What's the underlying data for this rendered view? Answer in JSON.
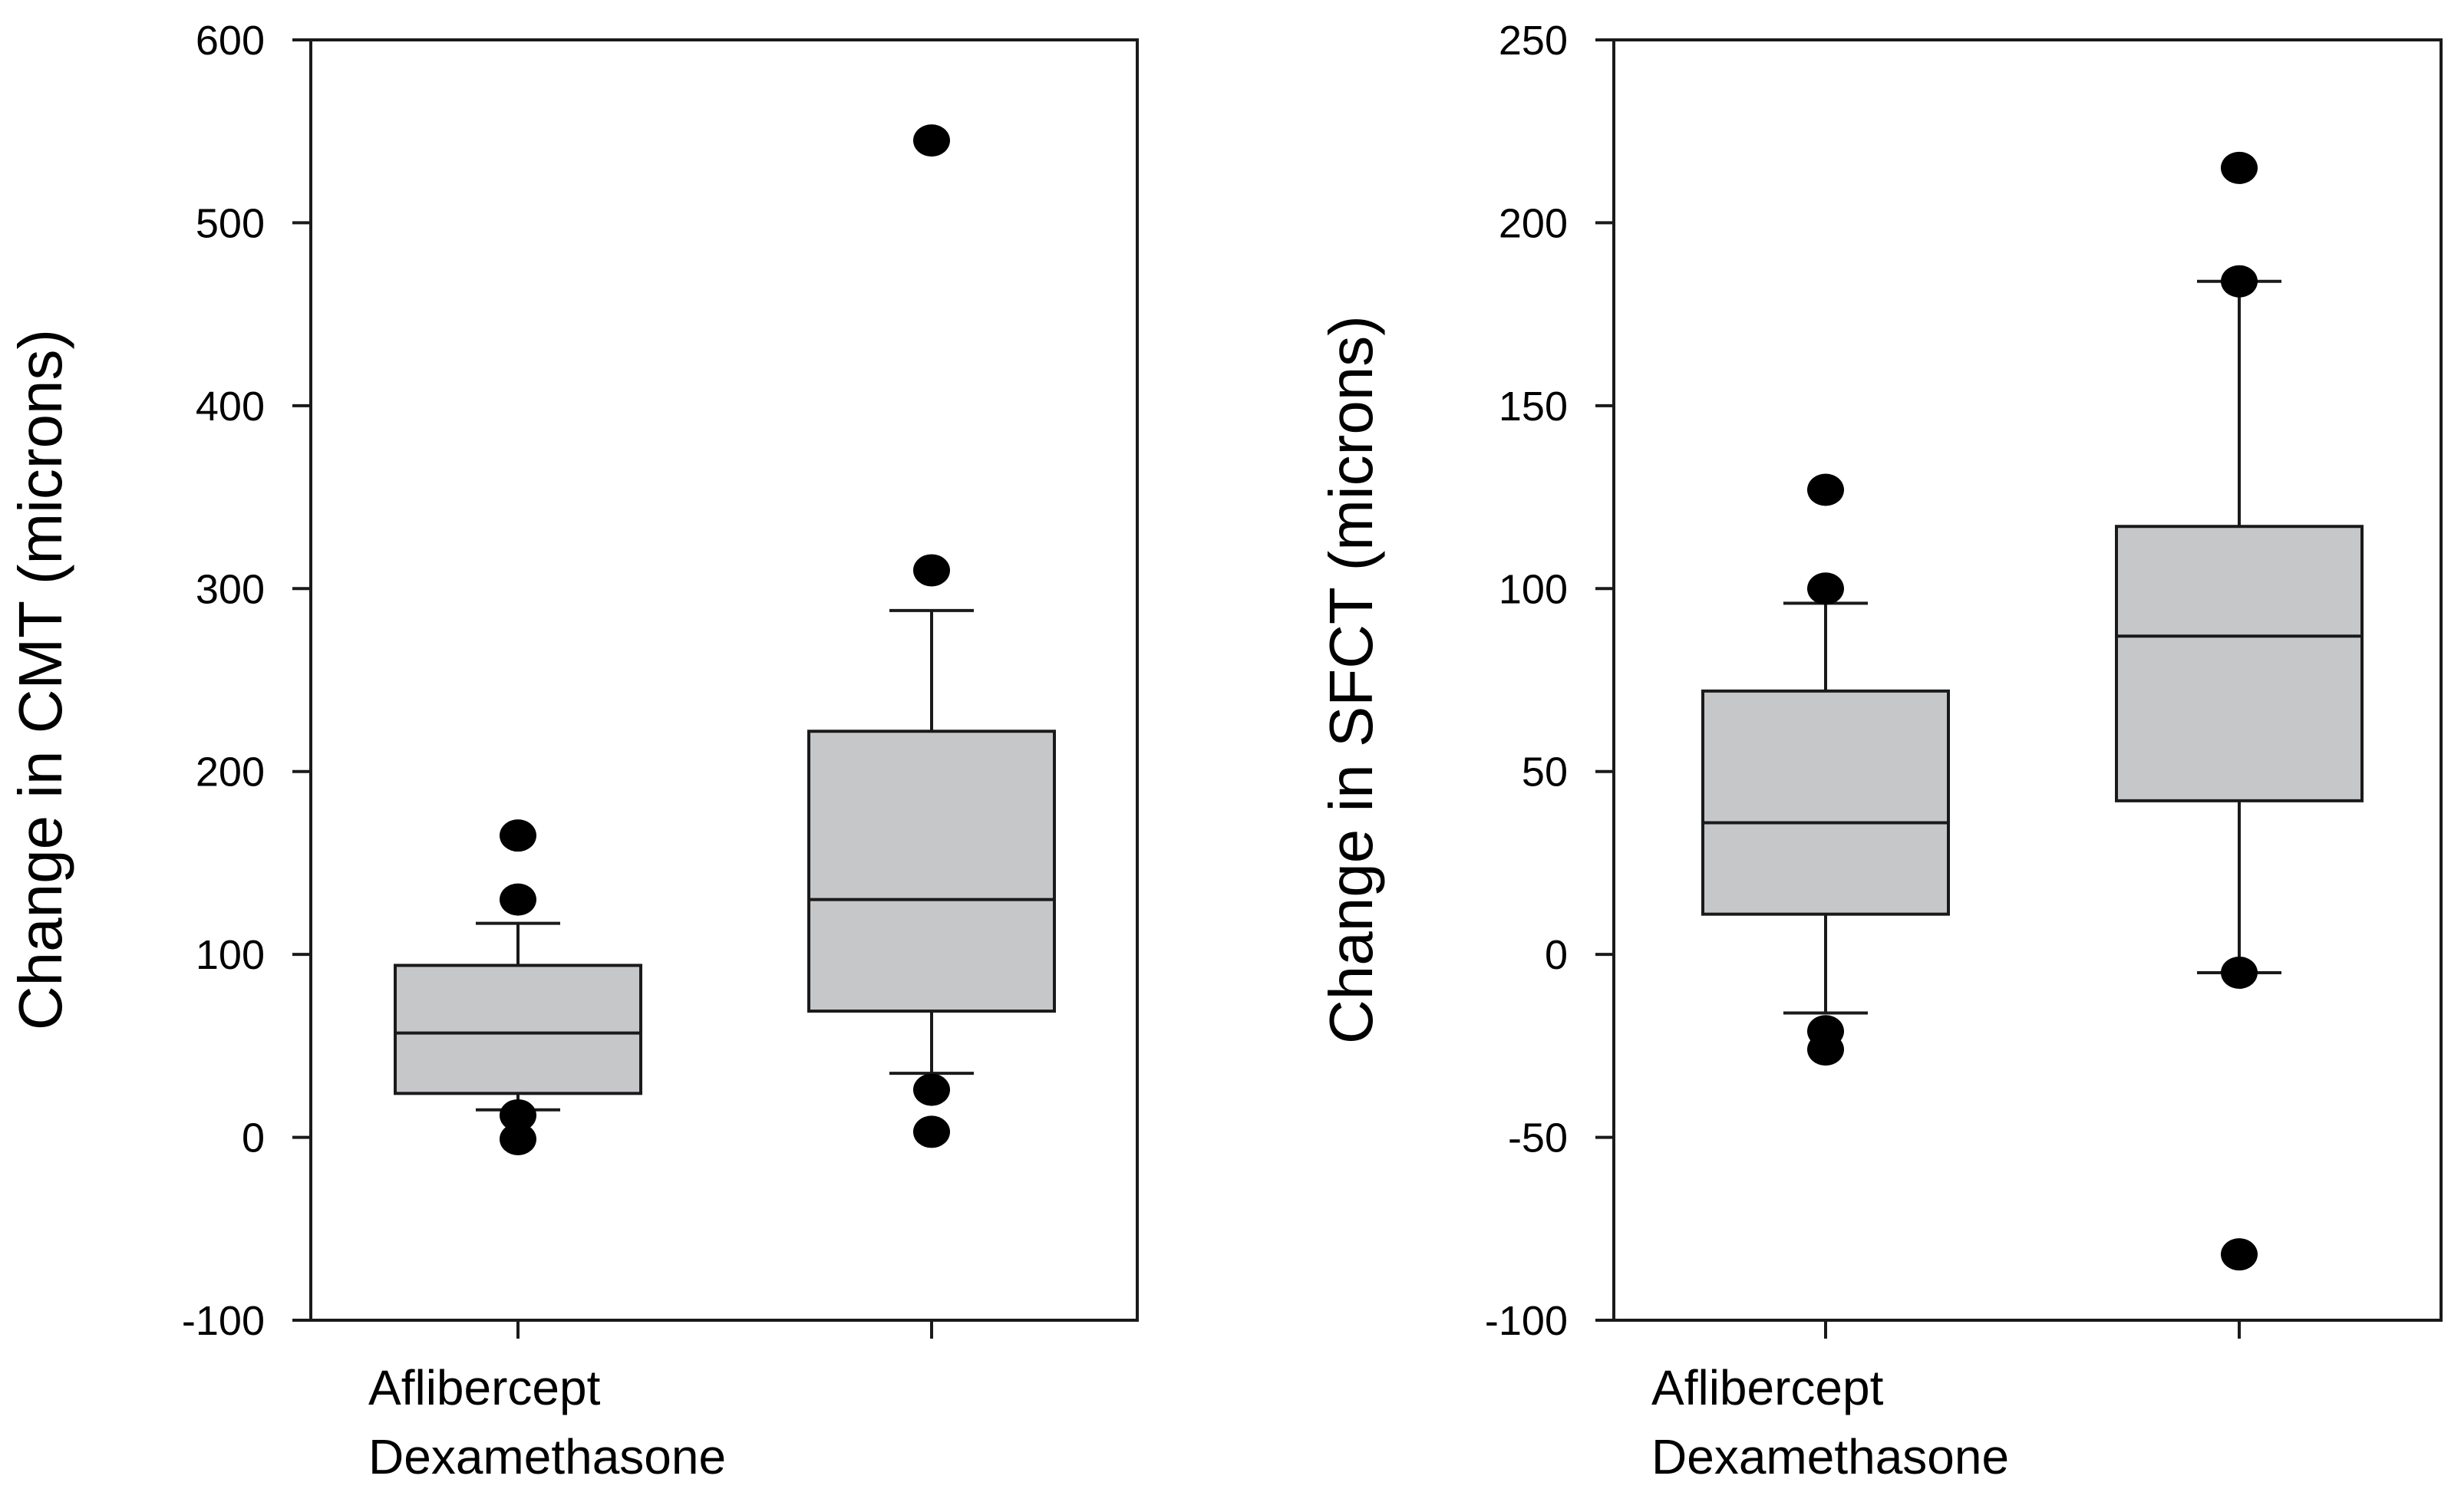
{
  "colors": {
    "box_fill": "#c6c7c9",
    "stroke": "#1a1a1a",
    "outlier": "#000000",
    "background": "#ffffff"
  },
  "chart_data": [
    {
      "type": "box",
      "ylabel": "Change in CMT (microns)",
      "ylim": [
        -100,
        600
      ],
      "yticks": [
        -100,
        0,
        100,
        200,
        300,
        400,
        500,
        600
      ],
      "legend_labels": [
        "Aflibercept",
        "Dexamethasone"
      ],
      "series": [
        {
          "name": "Aflibercept",
          "whisker_low": 15,
          "q1": 24,
          "median": 57,
          "q3": 94,
          "whisker_high": 117,
          "outliers": [
            165,
            130,
            12,
            -1
          ]
        },
        {
          "name": "Dexamethasone",
          "whisker_low": 35,
          "q1": 69,
          "median": 130,
          "q3": 222,
          "whisker_high": 288,
          "outliers": [
            545,
            310,
            26,
            3
          ]
        }
      ]
    },
    {
      "type": "box",
      "ylabel": "Change in SFCT (microns)",
      "ylim": [
        -100,
        250
      ],
      "yticks": [
        -100,
        -50,
        0,
        50,
        100,
        150,
        200,
        250
      ],
      "legend_labels": [
        "Aflibercept",
        "Dexamethasone"
      ],
      "series": [
        {
          "name": "Aflibercept",
          "whisker_low": -16,
          "q1": 11,
          "median": 36,
          "q3": 72,
          "whisker_high": 96,
          "outliers": [
            127,
            100,
            -21,
            -26
          ]
        },
        {
          "name": "Dexamethasone",
          "whisker_low": -5,
          "q1": 42,
          "median": 87,
          "q3": 117,
          "whisker_high": 184,
          "outliers": [
            215,
            184,
            -5,
            -82
          ]
        }
      ]
    }
  ]
}
